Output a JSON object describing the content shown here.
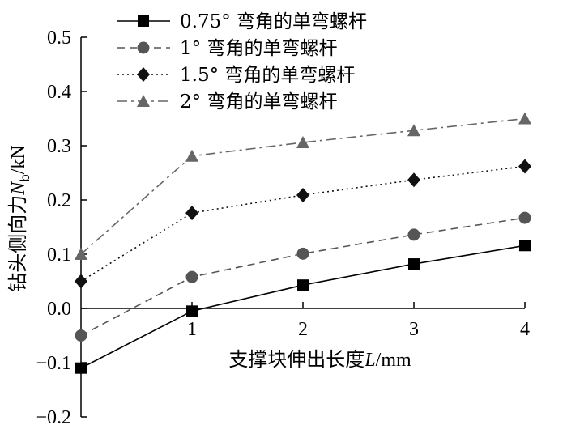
{
  "chart_data": {
    "type": "line",
    "x": [
      0,
      1,
      2,
      3,
      4
    ],
    "xlim": [
      0,
      4
    ],
    "ylim": [
      -0.2,
      0.5
    ],
    "x_ticks": [
      "1",
      "2",
      "3",
      "4"
    ],
    "y_ticks": [
      "0.5",
      "0.4",
      "0.3",
      "0.2",
      "0.1",
      "0.0",
      "−0.1",
      "−0.2"
    ],
    "xlabel": {
      "main": "支撑块伸出长度",
      "italic": "L",
      "unit": "/mm"
    },
    "ylabel": {
      "main": "钻头侧向力",
      "italic": "N",
      "sub": "b",
      "unit": "/kN"
    },
    "legend_placement": "top-left",
    "series": [
      {
        "name": "0.75° 弯角的单弯螺杆",
        "marker": "square",
        "dash": "solid",
        "color": "#000000",
        "values": [
          -0.11,
          -0.005,
          0.043,
          0.082,
          0.116
        ]
      },
      {
        "name": "1° 弯角的单弯螺杆",
        "marker": "circle",
        "dash": "dashed",
        "color": "#555555",
        "values": [
          -0.05,
          0.058,
          0.101,
          0.136,
          0.167
        ]
      },
      {
        "name": "1.5° 弯角的单弯螺杆",
        "marker": "diamond",
        "dash": "dotted",
        "color": "#111111",
        "values": [
          0.05,
          0.176,
          0.209,
          0.237,
          0.262
        ]
      },
      {
        "name": "2° 弯角的单弯螺杆",
        "marker": "triangle",
        "dash": "dashdot",
        "color": "#666666",
        "values": [
          0.1,
          0.281,
          0.306,
          0.328,
          0.35
        ]
      }
    ]
  }
}
